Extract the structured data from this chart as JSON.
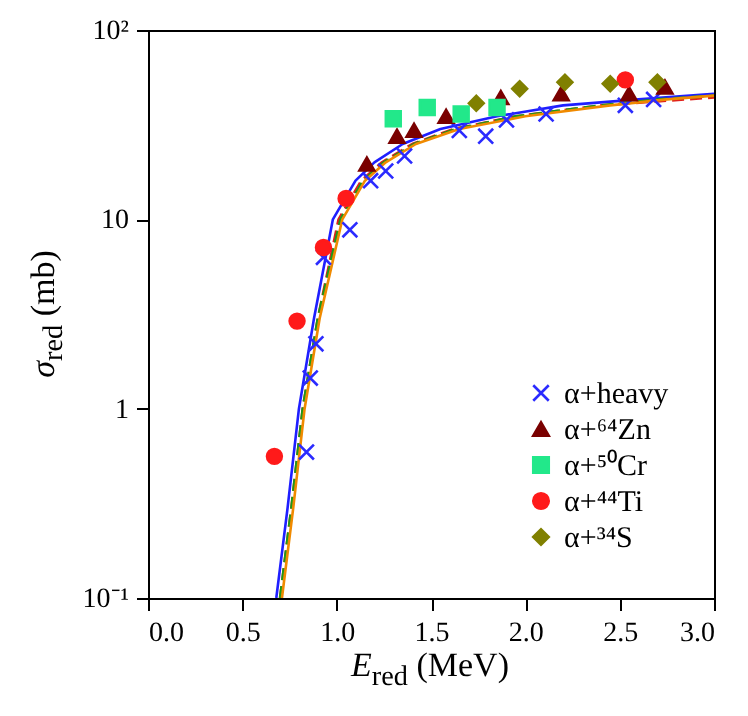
{
  "chart_data": {
    "type": "scatter",
    "xlabel": "E$_{red}$ (MeV)",
    "ylabel": "σ$_{red}$ (mb)",
    "xlim": [
      0,
      3
    ],
    "xticks": [
      {
        "value": 0,
        "label": "0.0"
      },
      0.5,
      {
        "value": 1,
        "label": "1.0"
      },
      1.5,
      {
        "value": 2,
        "label": "2.0"
      },
      2.5,
      {
        "value": 3,
        "label": "3.0"
      }
    ],
    "ylim": [
      0.1,
      100
    ],
    "yticks": [
      {
        "value": 0.1,
        "label": "10⁻¹"
      },
      1,
      10,
      {
        "value": 100,
        "label": "10²"
      }
    ],
    "log": "y",
    "grid": false,
    "legend": "bottom right",
    "series": [
      {
        "type": "line",
        "color": "#1f1fff",
        "line_style": "solid",
        "x": [
          0.68,
          0.74,
          0.8,
          0.88,
          0.98,
          1.1,
          1.2,
          1.35,
          1.55,
          1.85,
          2.2,
          2.6,
          3.0
        ],
        "values": [
          0.1,
          0.3,
          1,
          3,
          10,
          16,
          20,
          25,
          30,
          35,
          40,
          43,
          46
        ]
      },
      {
        "type": "line",
        "color": "#e0201b",
        "line_style": "dashed",
        "x": [
          0.7,
          0.76,
          0.82,
          0.9,
          1.01,
          1.13,
          1.24,
          1.4,
          1.62,
          1.95,
          2.4,
          2.7,
          3.0
        ],
        "values": [
          0.1,
          0.3,
          1,
          3,
          10,
          16,
          20,
          25,
          30,
          35,
          40,
          42,
          44
        ]
      },
      {
        "type": "line",
        "color": "#1a9a1a",
        "line_style": "dashed",
        "x": [
          0.7,
          0.76,
          0.82,
          0.9,
          1.02,
          1.14,
          1.25,
          1.41,
          1.63,
          1.95,
          2.4,
          2.7,
          3.0
        ],
        "values": [
          0.1,
          0.3,
          1,
          3,
          10,
          16,
          20,
          25,
          30,
          35,
          40,
          43,
          45
        ]
      },
      {
        "type": "line",
        "color": "#f08a00",
        "line_style": "solid",
        "x": [
          0.71,
          0.77,
          0.83,
          0.91,
          1.03,
          1.15,
          1.26,
          1.42,
          1.65,
          2.0,
          2.45,
          2.75,
          3.0
        ],
        "values": [
          0.1,
          0.3,
          1,
          3,
          10,
          16,
          20,
          25,
          30,
          35,
          40,
          43,
          45
        ]
      },
      {
        "name": "α+heavy",
        "color": "#2b2bff",
        "marker": "cross",
        "x": [
          0.84,
          0.86,
          0.89,
          0.93,
          1.07,
          1.18,
          1.26,
          1.36,
          1.65,
          1.79,
          1.9,
          2.11,
          2.53,
          2.68
        ],
        "values": [
          0.59,
          1.45,
          2.2,
          6.3,
          8.8,
          16,
          18,
          21.6,
          29.5,
          27.5,
          33.5,
          36,
          40,
          43
        ]
      },
      {
        "name": "α+⁶⁴Zn",
        "color": "#7a0000",
        "marker": "triangle",
        "x": [
          1.16,
          1.32,
          1.41,
          1.58,
          1.87,
          2.19,
          2.55,
          2.74
        ],
        "values": [
          19.6,
          27.5,
          29.5,
          35,
          44,
          46,
          46,
          50
        ]
      },
      {
        "name": "α+⁵⁰Cr",
        "color": "#22e88a",
        "marker": "square",
        "x": [
          1.3,
          1.48,
          1.66,
          1.85
        ],
        "values": [
          34,
          39,
          36,
          39
        ]
      },
      {
        "name": "α+⁴⁴Ti",
        "color": "#ff1a1a",
        "marker": "circle",
        "x": [
          0.67,
          0.79,
          0.93,
          1.05,
          2.53
        ],
        "values": [
          0.56,
          2.9,
          7.1,
          12.9,
          54.5
        ]
      },
      {
        "name": "α+³⁴S",
        "color": "#808000",
        "marker": "diamond",
        "x": [
          1.74,
          1.97,
          2.21,
          2.45,
          2.7
        ],
        "values": [
          41,
          49,
          53,
          52,
          53
        ]
      }
    ]
  }
}
